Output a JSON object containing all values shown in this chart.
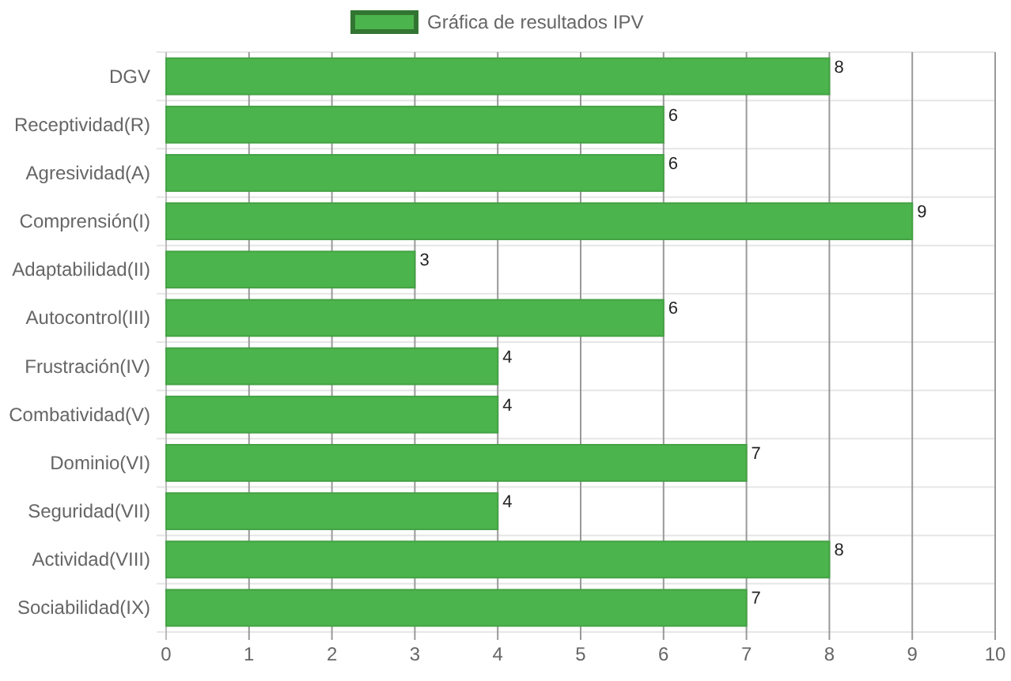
{
  "chart_data": {
    "type": "bar",
    "orientation": "horizontal",
    "categories": [
      "DGV",
      "Receptividad(R)",
      "Agresividad(A)",
      "Comprensión(I)",
      "Adaptabilidad(II)",
      "Autocontrol(III)",
      "Frustración(IV)",
      "Combatividad(V)",
      "Dominio(VI)",
      "Seguridad(VII)",
      "Actividad(VIII)",
      "Sociabilidad(IX)"
    ],
    "series": [
      {
        "name": "Gráfica de resultados IPV",
        "color": "#4cb44c",
        "values": [
          8,
          6,
          6,
          9,
          3,
          6,
          4,
          4,
          7,
          4,
          8,
          7
        ]
      }
    ],
    "xlim": [
      0,
      10
    ],
    "xticks": [
      0,
      1,
      2,
      3,
      4,
      5,
      6,
      7,
      8,
      9,
      10
    ],
    "grid": true,
    "legend": "top",
    "data_labels": true
  }
}
